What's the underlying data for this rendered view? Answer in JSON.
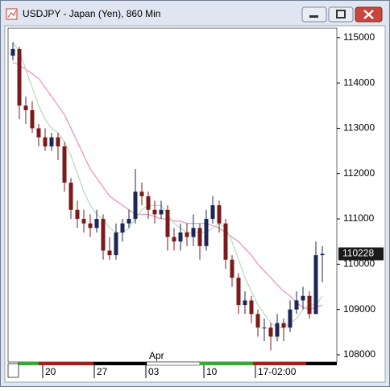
{
  "window": {
    "title": "USDJPY - Japan (Yen), 860 Min"
  },
  "chart_data": {
    "type": "candlestick",
    "categories": [
      null,
      null,
      null,
      null,
      null,
      "20",
      null,
      null,
      null,
      null,
      null,
      null,
      null,
      "27",
      null,
      null,
      null,
      null,
      null,
      null,
      null,
      "03",
      null,
      null,
      null,
      null,
      null,
      null,
      null,
      null,
      "10",
      null,
      null,
      null,
      null,
      null,
      null,
      null,
      "17-02:00",
      null,
      null,
      null,
      null,
      null,
      null,
      null,
      null,
      null,
      null
    ],
    "annotation": "Apr",
    "open": [
      114600,
      114750,
      113500,
      113400,
      113000,
      112800,
      112600,
      112800,
      112600,
      111800,
      111200,
      111000,
      110900,
      110800,
      111000,
      110300,
      110200,
      110700,
      110900,
      111000,
      111600,
      111500,
      111200,
      111100,
      111200,
      110600,
      110500,
      110700,
      110600,
      110800,
      110400,
      111000,
      111300,
      110900,
      110100,
      109700,
      109100,
      109200,
      108900,
      108600,
      108600,
      108400,
      108700,
      108600,
      109000,
      109200,
      109300,
      108900,
      110200
    ],
    "high": [
      114900,
      114800,
      113700,
      113600,
      113100,
      113000,
      112900,
      112900,
      112700,
      111900,
      111400,
      111200,
      111100,
      111200,
      111100,
      110600,
      110900,
      111000,
      111200,
      112100,
      111800,
      111600,
      111400,
      111400,
      111300,
      110800,
      110900,
      110900,
      111100,
      110900,
      111200,
      111500,
      111400,
      111000,
      110200,
      109800,
      109400,
      109300,
      109000,
      108800,
      108700,
      108900,
      108800,
      109200,
      109400,
      109500,
      109400,
      110500,
      110400
    ],
    "low": [
      114500,
      113200,
      113100,
      112900,
      112600,
      112500,
      112500,
      112300,
      111600,
      111000,
      110800,
      110700,
      110600,
      110700,
      110100,
      110100,
      110100,
      110500,
      110800,
      110900,
      111300,
      111000,
      110900,
      111000,
      110300,
      110300,
      110300,
      110400,
      110400,
      110100,
      110300,
      110900,
      110700,
      109900,
      109500,
      108900,
      108900,
      108700,
      108400,
      108300,
      108100,
      108300,
      108300,
      108500,
      108900,
      109000,
      108800,
      108900,
      109600
    ],
    "close": [
      114750,
      113500,
      113400,
      113000,
      112800,
      112600,
      112800,
      112600,
      111800,
      111200,
      111000,
      110900,
      110800,
      111000,
      110300,
      110200,
      110700,
      110900,
      111000,
      111600,
      111500,
      111200,
      111100,
      111200,
      110600,
      110500,
      110700,
      110600,
      110800,
      110400,
      111000,
      111300,
      110900,
      110100,
      109700,
      109100,
      109200,
      108900,
      108600,
      108600,
      108400,
      108700,
      108600,
      109000,
      109200,
      109300,
      108900,
      110200,
      110228
    ],
    "up_color": "#1c2657",
    "down_color": "#7b1a1a",
    "lines": [
      {
        "color": "#f08cbc",
        "values": [
          114450,
          114400,
          114300,
          114200,
          114100,
          113900,
          113700,
          113500,
          113300,
          113000,
          112700,
          112400,
          112100,
          111900,
          111700,
          111500,
          111400,
          111300,
          111200,
          111100,
          111100,
          111100,
          111050,
          111000,
          111000,
          110950,
          110950,
          110900,
          110900,
          110900,
          110900,
          110850,
          110800,
          110700,
          110600,
          110500,
          110350,
          110200,
          110000,
          109850,
          109700,
          109550,
          109400,
          109300,
          109150,
          109050,
          109000,
          109050,
          109100
        ]
      },
      {
        "color": "#b5d9b8",
        "values": [
          114900,
          114700,
          114300,
          113900,
          113500,
          113200,
          113000,
          112900,
          112700,
          112400,
          112000,
          111600,
          111300,
          111100,
          111000,
          110800,
          110700,
          110700,
          110800,
          111000,
          111200,
          111300,
          111300,
          111300,
          111100,
          110900,
          110800,
          110700,
          110700,
          110700,
          110700,
          110800,
          110900,
          110800,
          110500,
          110100,
          109700,
          109400,
          109100,
          108900,
          108700,
          108600,
          108600,
          108700,
          108800,
          109000,
          109100,
          109100,
          109300
        ]
      }
    ],
    "ylim": [
      107840,
      115210
    ],
    "yticks": [
      108000,
      109000,
      110000,
      111000,
      112000,
      113000,
      114000,
      115000
    ]
  }
}
